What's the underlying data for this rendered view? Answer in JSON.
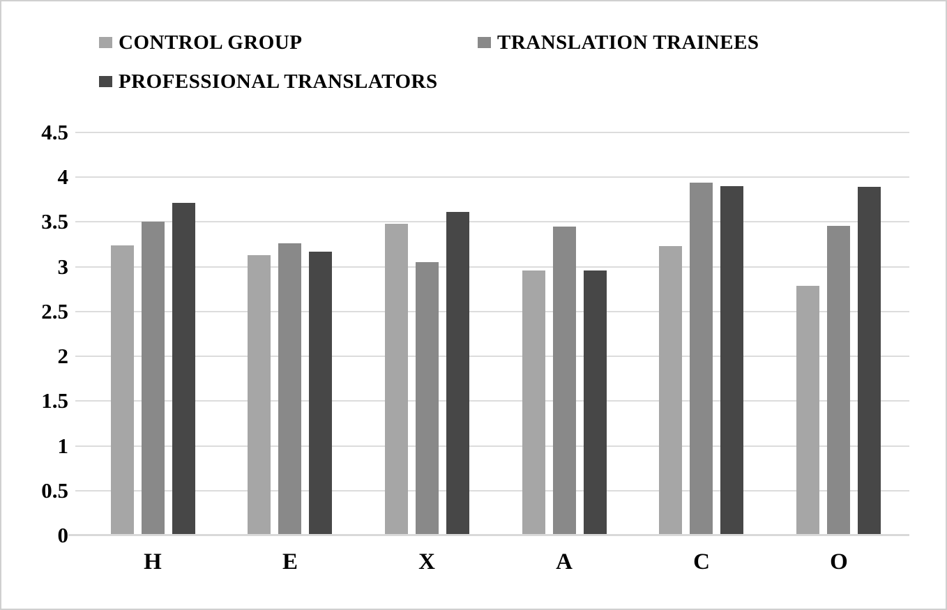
{
  "chart_data": {
    "type": "bar",
    "title": "",
    "xlabel": "",
    "ylabel": "",
    "categories": [
      "H",
      "E",
      "X",
      "A",
      "C",
      "O"
    ],
    "series": [
      {
        "name": "CONTROL GROUP",
        "color": "#a6a6a6",
        "values": [
          3.24,
          3.13,
          3.48,
          2.96,
          3.23,
          2.79
        ]
      },
      {
        "name": "TRANSLATION TRAINEES",
        "color": "#898989",
        "values": [
          3.5,
          3.26,
          3.05,
          3.45,
          3.94,
          3.46
        ]
      },
      {
        "name": "PROFESSIONAL TRANSLATORS",
        "color": "#474747",
        "values": [
          3.71,
          3.17,
          3.61,
          2.96,
          3.9,
          3.89
        ]
      }
    ],
    "ylim": [
      0,
      4.5
    ],
    "ytick_step": 0.5,
    "ytick_labels": [
      "0",
      "0.5",
      "1",
      "1.5",
      "2",
      "2.5",
      "3",
      "3.5",
      "4",
      "4.5"
    ],
    "grid": true,
    "legend_position": "top-left",
    "colors": {
      "gridline": "#dcdcdc",
      "axis_line": "#d9d9d9",
      "text": "#000000",
      "background": "#ffffff",
      "frame_border": "#cfcfcf"
    }
  }
}
